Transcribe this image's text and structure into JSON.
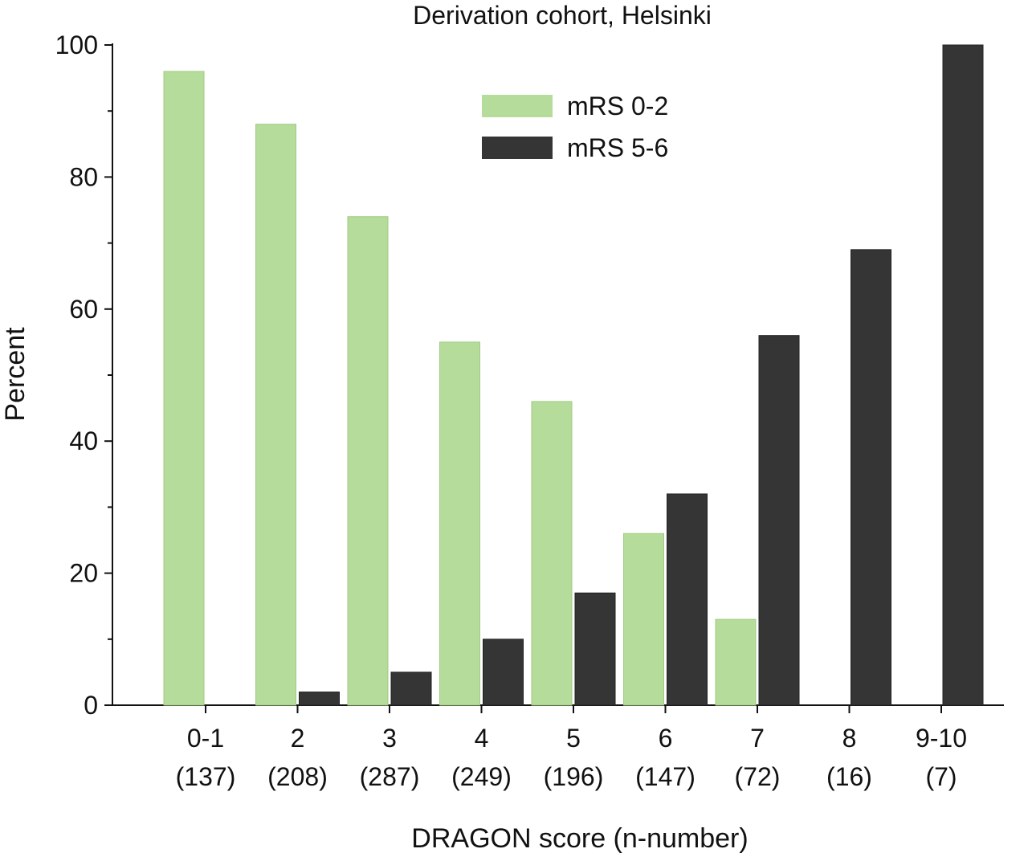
{
  "chart_data": {
    "type": "bar",
    "title": "Derivation cohort, Helsinki",
    "xlabel": "DRAGON score (n-number)",
    "ylabel": "Percent",
    "ylim": [
      0,
      100
    ],
    "yticks": [
      "0",
      "20",
      "40",
      "60",
      "80",
      "100"
    ],
    "categories": [
      "0-1",
      "2",
      "3",
      "4",
      "5",
      "6",
      "7",
      "8",
      "9-10"
    ],
    "category_counts": [
      "(137)",
      "(208)",
      "(287)",
      "(249)",
      "(196)",
      "(147)",
      "(72)",
      "(16)",
      "(7)"
    ],
    "legend_position": "top-center",
    "grid": false,
    "series": [
      {
        "name": "mRS 0-2",
        "color": "#b5dc9a",
        "values": [
          96,
          88,
          74,
          55,
          46,
          26,
          13,
          0,
          0
        ]
      },
      {
        "name": "mRS 5-6",
        "color": "#353535",
        "values": [
          0,
          2,
          5,
          10,
          17,
          32,
          56,
          69,
          100
        ]
      }
    ]
  }
}
